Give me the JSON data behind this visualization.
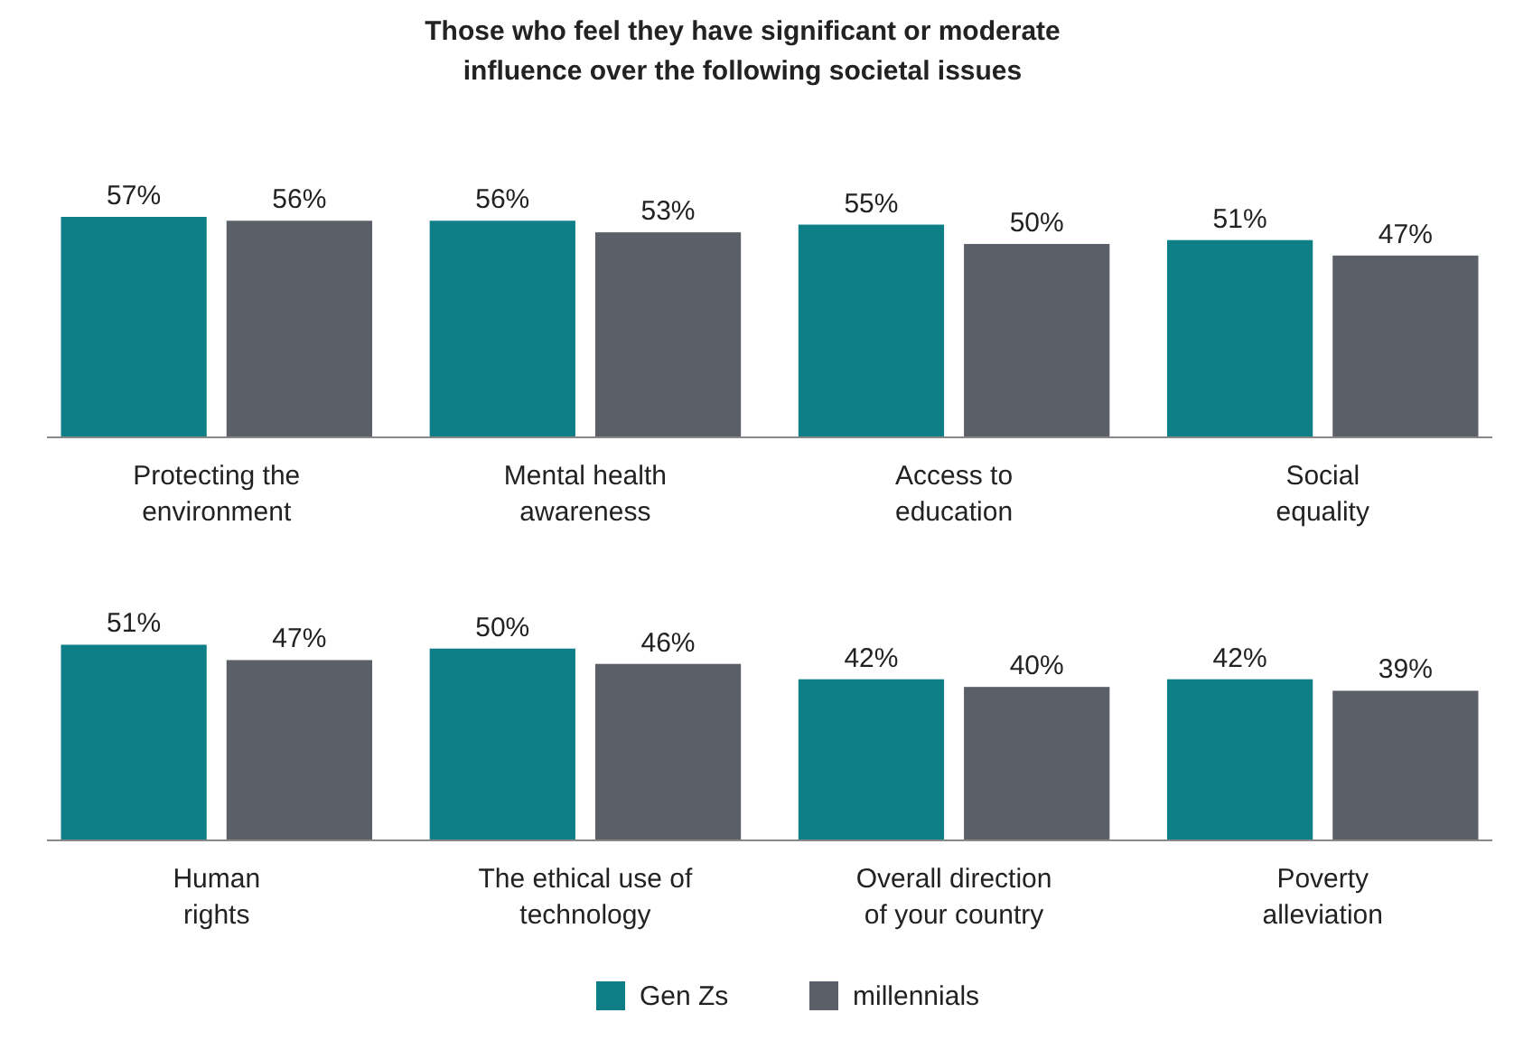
{
  "chart_data": [
    {
      "type": "bar",
      "title": "Those who feel they have significant or moderate influence over the following societal issues",
      "categories": [
        "Protecting the environment",
        "Mental health awareness",
        "Access to education",
        "Social equality"
      ],
      "series": [
        {
          "color": "#0e7f87",
          "values": [
            57,
            56,
            55,
            51
          ],
          "value_labels": [
            "57%",
            "56%",
            "55%",
            "51%"
          ]
        },
        {
          "color": "#5b6068",
          "values": [
            56,
            53,
            50,
            47
          ],
          "value_labels": [
            "56%",
            "53%",
            "50%",
            "47%"
          ]
        }
      ],
      "legend": false
    },
    {
      "type": "bar",
      "categories": [
        "Human rights",
        "The ethical use of technology",
        "Overall direction of your country",
        "Poverty alleviation"
      ],
      "series": [
        {
          "name": "Gen Zs",
          "color": "#0e7f87",
          "values": [
            51,
            50,
            42,
            42
          ],
          "value_labels": [
            "51%",
            "50%",
            "42%",
            "42%"
          ]
        },
        {
          "name": "millennials",
          "color": "#5b6068",
          "values": [
            47,
            46,
            40,
            39
          ],
          "value_labels": [
            "47%",
            "46%",
            "40%",
            "39%"
          ]
        }
      ],
      "legend": "bottom"
    }
  ]
}
